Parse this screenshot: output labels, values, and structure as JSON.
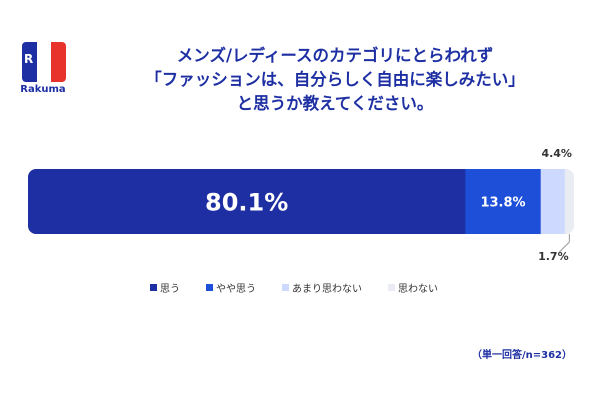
{
  "brand": {
    "name": "Rakuma",
    "mark": "R"
  },
  "title_lines": [
    "メンズ/レディースのカテゴリにとらわれず",
    "「ファッションは、自分らしく自由に楽しみたい」",
    "と思うか教えてください。"
  ],
  "chart_data": {
    "type": "bar",
    "orientation": "horizontal",
    "stacked": true,
    "categories": [
      "思う",
      "やや思う",
      "あまり思わない",
      "思わない"
    ],
    "values": [
      80.1,
      13.8,
      4.4,
      1.7
    ],
    "labels": [
      "80.1%",
      "13.8%",
      "4.4%",
      "1.7%"
    ],
    "colors": [
      "#1d2fa3",
      "#1e4fd8",
      "#cdd9ff",
      "#e9ecf2"
    ],
    "title": "",
    "legend_position": "bottom"
  },
  "footnote": "（単一回答/n=362）"
}
